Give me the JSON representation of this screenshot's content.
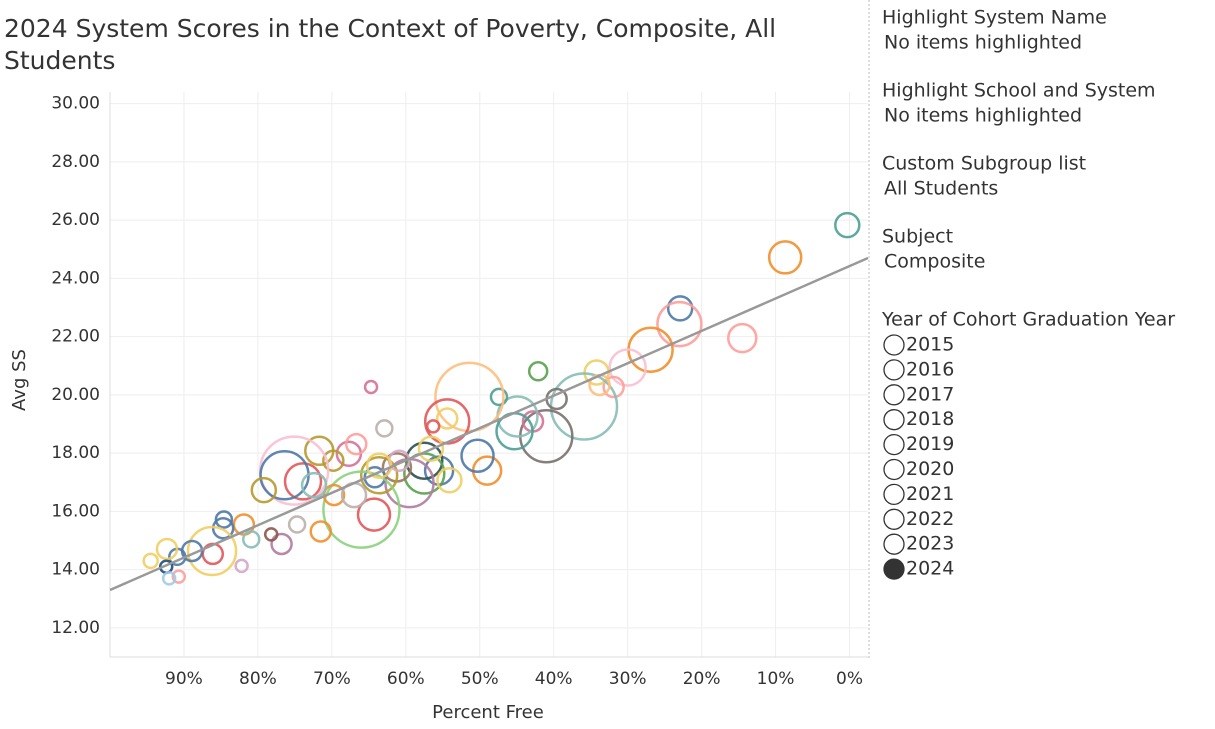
{
  "chart_data": {
    "type": "scatter",
    "title": "2024 System Scores in the Context of Poverty, Composite, All Students",
    "x_label": "Percent Free",
    "y_label": "Avg SS",
    "xlim": [
      100,
      -2.5
    ],
    "ylim": [
      11,
      30.4
    ],
    "x_reversed": true,
    "grid": true,
    "xticks": [
      {
        "value": 90,
        "label": "90%"
      },
      {
        "value": 80,
        "label": "80%"
      },
      {
        "value": 70,
        "label": "70%"
      },
      {
        "value": 60,
        "label": "60%"
      },
      {
        "value": 50,
        "label": "50%"
      },
      {
        "value": 40,
        "label": "40%"
      },
      {
        "value": 30,
        "label": "30%"
      },
      {
        "value": 20,
        "label": "20%"
      },
      {
        "value": 10,
        "label": "10%"
      },
      {
        "value": 0,
        "label": "0%"
      }
    ],
    "yticks": [
      {
        "value": 12,
        "label": "12.00"
      },
      {
        "value": 14,
        "label": "14.00"
      },
      {
        "value": 16,
        "label": "16.00"
      },
      {
        "value": 18,
        "label": "18.00"
      },
      {
        "value": 20,
        "label": "20.00"
      },
      {
        "value": 22,
        "label": "22.00"
      },
      {
        "value": 24,
        "label": "24.00"
      },
      {
        "value": 26,
        "label": "26.00"
      },
      {
        "value": 28,
        "label": "28.00"
      },
      {
        "value": 30,
        "label": "30.00"
      }
    ],
    "trend_line": {
      "color": "#999999",
      "x": [
        100,
        -2.5
      ],
      "y": [
        13.3,
        24.7
      ]
    },
    "x": [
      0.3,
      8.7,
      22.9,
      23.0,
      14.5,
      26.9,
      30.0,
      31.9,
      34.2,
      35.9,
      39.6,
      41.0,
      42.1,
      42.8,
      44.9,
      45.3,
      47.4,
      49.0,
      50.3,
      51.4,
      54.4,
      54.4,
      55.5,
      57.5,
      57.5,
      59.5,
      61.2,
      63.6,
      64.7,
      64.3,
      64.2,
      66.0,
      67.7,
      69.8,
      71.7,
      73.9,
      75.1,
      76.4,
      76.8,
      74.7,
      71.5,
      79.2,
      81.9,
      84.6,
      84.7,
      86.2,
      86.1,
      88.9,
      90.9,
      92.3,
      94.5,
      92.4,
      90.7,
      92.0,
      82.2,
      80.9,
      78.2,
      62.9,
      56.3,
      54.1,
      69.7,
      72.4,
      60.9,
      67.0,
      63.6,
      66.7,
      56.6,
      33.8
    ],
    "values": [
      25.83,
      24.72,
      22.97,
      22.43,
      21.95,
      21.55,
      20.94,
      20.27,
      20.77,
      19.6,
      19.86,
      18.58,
      20.81,
      19.09,
      19.26,
      18.75,
      19.93,
      17.4,
      17.91,
      19.93,
      19.09,
      19.19,
      17.4,
      17.74,
      17.3,
      16.97,
      17.51,
      17.24,
      20.27,
      15.89,
      17.17,
      16.06,
      17.98,
      17.74,
      18.08,
      17.03,
      17.4,
      17.24,
      14.88,
      15.55,
      15.31,
      16.73,
      15.55,
      15.72,
      15.42,
      14.64,
      14.54,
      14.64,
      14.44,
      14.71,
      14.3,
      14.1,
      13.76,
      13.7,
      14.13,
      15.04,
      15.21,
      18.85,
      18.92,
      17.07,
      16.56,
      16.9,
      17.74,
      16.56,
      17.57,
      18.31,
      18.15,
      20.34
    ],
    "sizes": [
      12,
      16,
      12,
      22,
      14,
      22,
      18,
      10,
      12,
      33,
      10,
      26,
      9,
      10,
      20,
      18,
      8,
      14,
      16,
      34,
      22,
      10,
      14,
      18,
      20,
      24,
      14,
      18,
      6,
      16,
      10,
      38,
      12,
      10,
      14,
      18,
      34,
      24,
      10,
      8,
      10,
      12,
      10,
      8,
      10,
      24,
      10,
      10,
      8,
      10,
      7,
      6,
      6,
      6,
      6,
      8,
      6,
      8,
      6,
      12,
      10,
      12,
      10,
      12,
      12,
      10,
      12,
      10
    ],
    "colors": [
      "#4e9f95",
      "#f28e2b",
      "#4e79a7",
      "#ff9d9a",
      "#ff9d9a",
      "#f28e2b",
      "#fabfd2",
      "#ff9d9a",
      "#f1ce63",
      "#86bcb6",
      "#79706e",
      "#79706e",
      "#59a14f",
      "#d37295",
      "#86bcb6",
      "#4e9f95",
      "#4e9f95",
      "#f28e2b",
      "#4e79a7",
      "#ffbe7d",
      "#e15759",
      "#f1ce63",
      "#4e79a7",
      "#2f4f4f",
      "#59a14f",
      "#b07aa1",
      "#9c755f",
      "#b6992d",
      "#d37295",
      "#e15759",
      "#4e79a7",
      "#8cd17d",
      "#d37295",
      "#b6992d",
      "#b6992d",
      "#e15759",
      "#fabfd2",
      "#4e79a7",
      "#b07aa1",
      "#bab0ac",
      "#f28e2b",
      "#b6992d",
      "#f28e2b",
      "#4e79a7",
      "#4e79a7",
      "#f1ce63",
      "#e15759",
      "#4e79a7",
      "#4e79a7",
      "#f1ce63",
      "#f1ce63",
      "#1f4e79",
      "#ff9d9a",
      "#a0cbe8",
      "#d4a6c8",
      "#86bcb6",
      "#8c564b",
      "#bab0ac",
      "#e15759",
      "#f1ce63",
      "#f28e2b",
      "#86bcb6",
      "#d4a6c8",
      "#bab0ac",
      "#f1ce63",
      "#ff9d9a",
      "#f1ce63",
      "#ffbe7d"
    ]
  },
  "filters": [
    {
      "title": "Highlight System Name",
      "value": "No items highlighted"
    },
    {
      "title": "Highlight School and System",
      "value": "No items highlighted"
    },
    {
      "title": "Custom Subgroup list",
      "value": "All Students"
    },
    {
      "title": "Subject",
      "value": "Composite"
    }
  ],
  "legend": {
    "title": "Year of Cohort Graduation Year",
    "items": [
      2015,
      2016,
      2017,
      2018,
      2019,
      2020,
      2021,
      2022,
      2023,
      2024
    ],
    "selected": 2024
  }
}
